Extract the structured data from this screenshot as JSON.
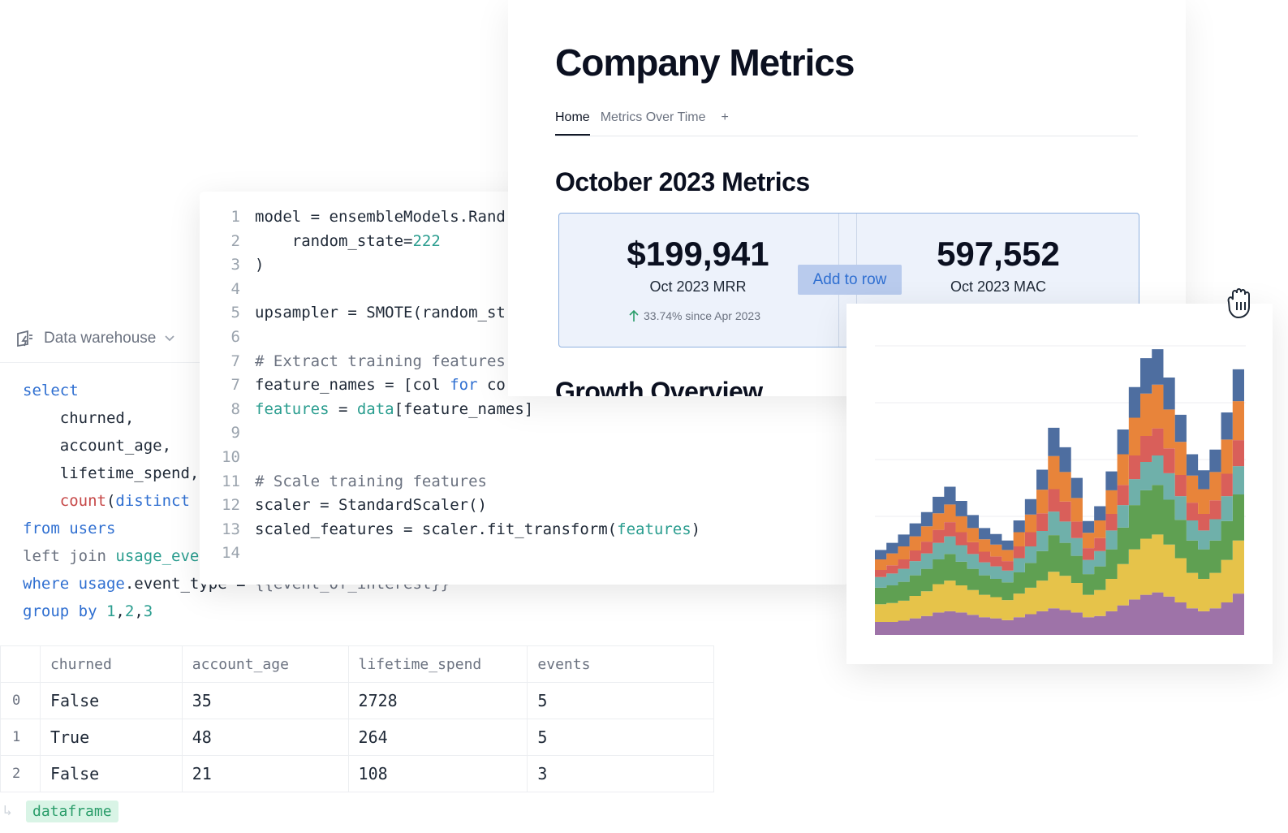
{
  "sql_panel": {
    "connection_label": "Data warehouse",
    "lines": [
      {
        "parts": [
          [
            "kw",
            "select"
          ]
        ]
      },
      {
        "parts": [
          [
            "",
            "    churned,"
          ]
        ]
      },
      {
        "parts": [
          [
            "",
            "    account_age,"
          ]
        ]
      },
      {
        "parts": [
          [
            "",
            "    lifetime_spend,"
          ]
        ]
      },
      {
        "parts": [
          [
            "",
            "    "
          ],
          [
            "fn",
            "count"
          ],
          [
            "",
            "("
          ],
          [
            "kw",
            "distinct"
          ]
        ]
      },
      {
        "parts": [
          [
            "kw",
            "from "
          ],
          [
            "kw",
            "users"
          ]
        ]
      },
      {
        "parts": [
          [
            "mut",
            "left join "
          ],
          [
            "tl",
            "usage_eve"
          ]
        ]
      },
      {
        "parts": [
          [
            "kw",
            "where "
          ],
          [
            "kw",
            "usage"
          ],
          [
            "",
            ".event_type = "
          ],
          [
            "mut",
            "{{event_of_interest}}"
          ]
        ]
      },
      {
        "parts": [
          [
            "kw",
            "group by "
          ],
          [
            "num",
            "1"
          ],
          [
            "",
            ","
          ],
          [
            "num",
            "2"
          ],
          [
            "",
            ","
          ],
          [
            "num",
            "3"
          ]
        ]
      }
    ],
    "table": {
      "columns": [
        "churned",
        "account_age",
        "lifetime_spend",
        "events"
      ],
      "rows": [
        {
          "index": "0",
          "cells": [
            "False",
            "35",
            "2728",
            "5"
          ]
        },
        {
          "index": "1",
          "cells": [
            "True",
            "48",
            "264",
            "5"
          ]
        },
        {
          "index": "2",
          "cells": [
            "False",
            "21",
            "108",
            "3"
          ]
        }
      ]
    },
    "output_tag": "dataframe"
  },
  "code_panel": {
    "lines": [
      {
        "n": "1",
        "parts": [
          [
            "",
            "model = ensembleModels.Rand"
          ]
        ]
      },
      {
        "n": "2",
        "parts": [
          [
            "",
            "    random_state="
          ],
          [
            "num",
            "222"
          ]
        ]
      },
      {
        "n": "3",
        "parts": [
          [
            "",
            ")"
          ]
        ]
      },
      {
        "n": "4",
        "parts": []
      },
      {
        "n": "5",
        "parts": [
          [
            "",
            "upsampler = SMOTE(random_st"
          ]
        ]
      },
      {
        "n": "6",
        "parts": []
      },
      {
        "n": "7",
        "parts": [
          [
            "cmt",
            "# Extract training features"
          ]
        ]
      },
      {
        "n": "7",
        "parts": [
          [
            "",
            "feature_names = [col "
          ],
          [
            "kw",
            "for"
          ],
          [
            "",
            " co"
          ]
        ]
      },
      {
        "n": "8",
        "parts": [
          [
            "tl",
            "features"
          ],
          [
            "",
            " = "
          ],
          [
            "tl",
            "data"
          ],
          [
            "",
            "[feature_names]"
          ]
        ]
      },
      {
        "n": "9",
        "parts": []
      },
      {
        "n": "10",
        "parts": []
      },
      {
        "n": "11",
        "parts": [
          [
            "cmt",
            "# Scale training features"
          ]
        ]
      },
      {
        "n": "12",
        "parts": [
          [
            "",
            "scaler = StandardScaler()"
          ]
        ]
      },
      {
        "n": "13",
        "parts": [
          [
            "",
            "scaled_features = scaler.fit_transform("
          ],
          [
            "tl",
            "features"
          ],
          [
            "",
            ")"
          ]
        ]
      },
      {
        "n": "14",
        "parts": []
      }
    ]
  },
  "report": {
    "title": "Company Metrics",
    "tabs": {
      "home": "Home",
      "metrics_over_time": "Metrics Over Time",
      "add": "+"
    },
    "section_title": "October 2023 Metrics",
    "kpis": [
      {
        "value": "$199,941",
        "label": "Oct 2023 MRR",
        "delta": "33.74% since Apr 2023"
      },
      {
        "value": "597,552",
        "label": "Oct 2023 MAC"
      }
    ],
    "add_to_row_label": "Add to row",
    "section2_title": "Growth Overview"
  },
  "chart_data": {
    "type": "area",
    "stacked": true,
    "stepped": true,
    "grid": true,
    "ylim": [
      0,
      520
    ],
    "x": [
      1,
      2,
      3,
      4,
      5,
      6,
      7,
      8,
      9,
      10,
      11,
      12,
      13,
      14,
      15,
      16,
      17,
      18,
      19,
      20,
      21,
      22,
      23,
      24,
      25,
      26,
      27,
      28,
      29,
      30,
      31,
      32
    ],
    "colors": [
      "#9e73a8",
      "#e6c34a",
      "#5fa052",
      "#6fb0aa",
      "#d95f5a",
      "#e8843a",
      "#4e6ea0"
    ],
    "series": [
      {
        "values": [
          22,
          22,
          24,
          28,
          32,
          38,
          40,
          38,
          34,
          30,
          28,
          25,
          30,
          35,
          40,
          45,
          42,
          38,
          30,
          32,
          40,
          50,
          60,
          68,
          72,
          65,
          55,
          45,
          40,
          45,
          55,
          70
        ]
      },
      {
        "values": [
          30,
          32,
          34,
          38,
          42,
          48,
          52,
          46,
          42,
          38,
          36,
          34,
          40,
          45,
          52,
          62,
          58,
          50,
          38,
          44,
          55,
          70,
          85,
          95,
          98,
          88,
          75,
          60,
          55,
          60,
          72,
          90
        ]
      },
      {
        "values": [
          28,
          30,
          32,
          35,
          38,
          42,
          45,
          40,
          36,
          33,
          31,
          30,
          36,
          42,
          50,
          62,
          56,
          46,
          35,
          40,
          50,
          62,
          75,
          82,
          84,
          76,
          65,
          55,
          50,
          55,
          66,
          78
        ]
      },
      {
        "values": [
          18,
          20,
          22,
          24,
          26,
          28,
          30,
          28,
          25,
          22,
          21,
          20,
          24,
          28,
          34,
          40,
          36,
          30,
          24,
          26,
          32,
          38,
          44,
          48,
          50,
          45,
          40,
          34,
          32,
          36,
          42,
          48
        ]
      },
      {
        "values": [
          12,
          14,
          16,
          18,
          20,
          22,
          24,
          22,
          20,
          18,
          17,
          16,
          20,
          24,
          30,
          38,
          34,
          28,
          20,
          22,
          28,
          34,
          40,
          44,
          46,
          42,
          36,
          30,
          28,
          32,
          38,
          44
        ]
      },
      {
        "values": [
          18,
          20,
          22,
          24,
          26,
          28,
          30,
          27,
          24,
          21,
          20,
          19,
          24,
          30,
          40,
          56,
          50,
          40,
          26,
          30,
          40,
          52,
          64,
          72,
          74,
          66,
          56,
          46,
          42,
          48,
          58,
          66
        ]
      },
      {
        "values": [
          16,
          18,
          20,
          22,
          24,
          28,
          30,
          26,
          22,
          19,
          18,
          16,
          20,
          26,
          34,
          48,
          42,
          34,
          20,
          24,
          32,
          42,
          52,
          60,
          60,
          54,
          46,
          36,
          32,
          38,
          46,
          54
        ]
      }
    ]
  }
}
